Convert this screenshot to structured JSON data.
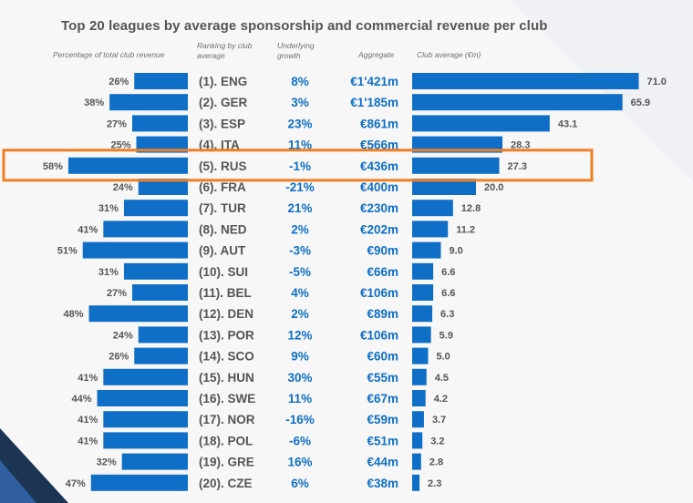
{
  "title": "Top 20 leagues by average sponsorship and commercial revenue per club",
  "column_headers": {
    "percentage": "Percentage of total club revenue",
    "ranking": "Ranking by club average",
    "growth": "Underlying growth",
    "aggregate": "Aggregate",
    "club_average": "Club average (€m)"
  },
  "highlight": {
    "row": "(5). RUS",
    "color": "#f07f23"
  },
  "colors": {
    "bar": "#0f6fc6",
    "ranking_text": "#555555",
    "accent_text": "#0f6fc6"
  },
  "chart_data": {
    "type": "table",
    "rows": [
      {
        "ranking": "(1). ENG",
        "pct_total_revenue": "26%",
        "pct_value": 26,
        "growth": "8%",
        "aggregate": "€1'421m",
        "club_average": 71.0,
        "club_average_label": "71.0"
      },
      {
        "ranking": "(2). GER",
        "pct_total_revenue": "38%",
        "pct_value": 38,
        "growth": "3%",
        "aggregate": "€1'185m",
        "club_average": 65.9,
        "club_average_label": "65.9"
      },
      {
        "ranking": "(3). ESP",
        "pct_total_revenue": "27%",
        "pct_value": 27,
        "growth": "23%",
        "aggregate": "€861m",
        "club_average": 43.1,
        "club_average_label": "43.1"
      },
      {
        "ranking": "(4). ITA",
        "pct_total_revenue": "25%",
        "pct_value": 25,
        "growth": "11%",
        "aggregate": "€566m",
        "club_average": 28.3,
        "club_average_label": "28.3"
      },
      {
        "ranking": "(5). RUS",
        "pct_total_revenue": "58%",
        "pct_value": 58,
        "growth": "-1%",
        "aggregate": "€436m",
        "club_average": 27.3,
        "club_average_label": "27.3"
      },
      {
        "ranking": "(6). FRA",
        "pct_total_revenue": "24%",
        "pct_value": 24,
        "growth": "-21%",
        "aggregate": "€400m",
        "club_average": 20.0,
        "club_average_label": "20.0"
      },
      {
        "ranking": "(7). TUR",
        "pct_total_revenue": "31%",
        "pct_value": 31,
        "growth": "21%",
        "aggregate": "€230m",
        "club_average": 12.8,
        "club_average_label": "12.8"
      },
      {
        "ranking": "(8). NED",
        "pct_total_revenue": "41%",
        "pct_value": 41,
        "growth": "2%",
        "aggregate": "€202m",
        "club_average": 11.2,
        "club_average_label": "11.2"
      },
      {
        "ranking": "(9). AUT",
        "pct_total_revenue": "51%",
        "pct_value": 51,
        "growth": "-3%",
        "aggregate": "€90m",
        "club_average": 9.0,
        "club_average_label": "9.0"
      },
      {
        "ranking": "(10). SUI",
        "pct_total_revenue": "31%",
        "pct_value": 31,
        "growth": "-5%",
        "aggregate": "€66m",
        "club_average": 6.6,
        "club_average_label": "6.6"
      },
      {
        "ranking": "(11). BEL",
        "pct_total_revenue": "27%",
        "pct_value": 27,
        "growth": "4%",
        "aggregate": "€106m",
        "club_average": 6.6,
        "club_average_label": "6.6"
      },
      {
        "ranking": "(12). DEN",
        "pct_total_revenue": "48%",
        "pct_value": 48,
        "growth": "2%",
        "aggregate": "€89m",
        "club_average": 6.3,
        "club_average_label": "6.3"
      },
      {
        "ranking": "(13). POR",
        "pct_total_revenue": "24%",
        "pct_value": 24,
        "growth": "12%",
        "aggregate": "€106m",
        "club_average": 5.9,
        "club_average_label": "5.9"
      },
      {
        "ranking": "(14). SCO",
        "pct_total_revenue": "26%",
        "pct_value": 26,
        "growth": "9%",
        "aggregate": "€60m",
        "club_average": 5.0,
        "club_average_label": "5.0"
      },
      {
        "ranking": "(15). HUN",
        "pct_total_revenue": "41%",
        "pct_value": 41,
        "growth": "30%",
        "aggregate": "€55m",
        "club_average": 4.5,
        "club_average_label": "4.5"
      },
      {
        "ranking": "(16). SWE",
        "pct_total_revenue": "44%",
        "pct_value": 44,
        "growth": "11%",
        "aggregate": "€67m",
        "club_average": 4.2,
        "club_average_label": "4.2"
      },
      {
        "ranking": "(17). NOR",
        "pct_total_revenue": "41%",
        "pct_value": 41,
        "growth": "-16%",
        "aggregate": "€59m",
        "club_average": 3.7,
        "club_average_label": "3.7"
      },
      {
        "ranking": "(18). POL",
        "pct_total_revenue": "41%",
        "pct_value": 41,
        "growth": "-6%",
        "aggregate": "€51m",
        "club_average": 3.2,
        "club_average_label": "3.2"
      },
      {
        "ranking": "(19). GRE",
        "pct_total_revenue": "32%",
        "pct_value": 32,
        "growth": "16%",
        "aggregate": "€44m",
        "club_average": 2.8,
        "club_average_label": "2.8"
      },
      {
        "ranking": "(20). CZE",
        "pct_total_revenue": "47%",
        "pct_value": 47,
        "growth": "6%",
        "aggregate": "€38m",
        "club_average": 2.3,
        "club_average_label": "2.3"
      }
    ]
  }
}
